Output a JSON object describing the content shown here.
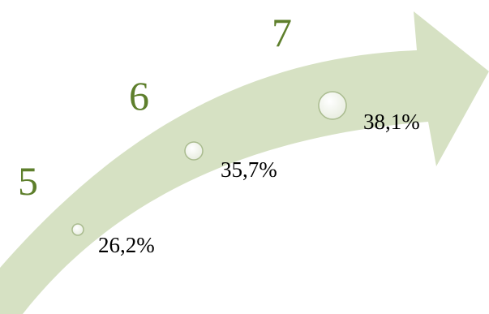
{
  "colors": {
    "arrow_fill": "#d6e1c3",
    "arrow_edge": "#c9d8b2",
    "number_color": "#5e7f2c",
    "marker_fill": "#f4f6ef",
    "marker_stroke": "#a9bb8e"
  },
  "steps": [
    {
      "number": "5",
      "value": "26,2%"
    },
    {
      "number": "6",
      "value": "35,7%"
    },
    {
      "number": "7",
      "value": "38,1%"
    }
  ]
}
